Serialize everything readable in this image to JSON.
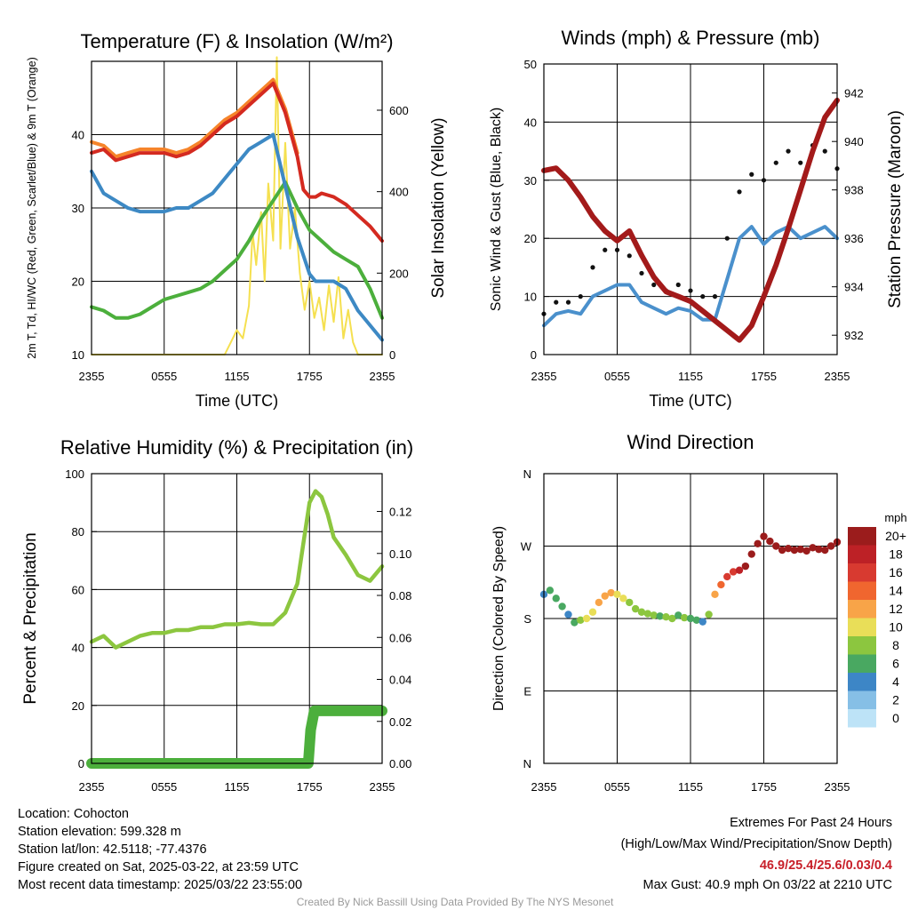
{
  "chart_data": [
    {
      "type": "line",
      "title": "Temperature (F) & Insolation (W/m²)",
      "xlabel": "Time (UTC)",
      "ylabel": "2m T, Td, HI/WC (Red, Green, Scarlet/Blue) & 9m T (Orange)",
      "y2label": "Solar Insolation (Yellow)",
      "x_ticks": [
        "2355",
        "0555",
        "1155",
        "1755",
        "2355"
      ],
      "ylim": [
        10,
        50
      ],
      "yticks": [
        10,
        20,
        30,
        40
      ],
      "y2lim": [
        0,
        720
      ],
      "y2ticks": [
        0,
        200,
        400,
        600
      ],
      "grid": true,
      "series": [
        {
          "name": "2m T",
          "color": "#d42a20",
          "axis": "left",
          "x": [
            0,
            1,
            2,
            3,
            4,
            5,
            6,
            7,
            8,
            9,
            10,
            11,
            12,
            13,
            14,
            15,
            16,
            17,
            17.5,
            18,
            18.5,
            19,
            20,
            21,
            22,
            23,
            24
          ],
          "y": [
            37.5,
            38,
            36.5,
            37,
            37.5,
            37.5,
            37.5,
            37,
            37.5,
            38.5,
            40,
            41.5,
            42.5,
            44,
            45.5,
            47,
            43,
            37,
            32.5,
            31.5,
            31.5,
            32,
            31.5,
            30.5,
            29,
            27.5,
            25.5
          ]
        },
        {
          "name": "9m T",
          "color": "#f6842a",
          "axis": "left",
          "x": [
            0,
            1,
            2,
            3,
            4,
            5,
            6,
            7,
            8,
            9,
            10,
            11,
            12,
            13,
            14,
            15,
            16,
            17
          ],
          "y": [
            39,
            38.5,
            37,
            37.5,
            38,
            38,
            38,
            37.5,
            38,
            39,
            40.5,
            42,
            43,
            44.5,
            46,
            47.5,
            43.5,
            37.5
          ]
        },
        {
          "name": "Wind Chill",
          "color": "#3d89c4",
          "axis": "left",
          "x": [
            0,
            1,
            2,
            3,
            4,
            5,
            6,
            7,
            8,
            9,
            10,
            11,
            12,
            13,
            14,
            15,
            16,
            17,
            18,
            18.5,
            19,
            20,
            21,
            22,
            23,
            24
          ],
          "y": [
            35,
            32,
            31,
            30,
            29.5,
            29.5,
            29.5,
            30,
            30,
            31,
            32,
            34,
            36,
            38,
            39,
            40,
            33,
            26,
            21,
            20,
            20,
            20,
            19,
            16,
            14,
            12
          ]
        },
        {
          "name": "Td",
          "color": "#4caf3c",
          "axis": "left",
          "x": [
            0,
            1,
            2,
            3,
            4,
            5,
            6,
            7,
            8,
            9,
            10,
            11,
            12,
            13,
            14,
            15,
            16,
            17,
            18,
            19,
            20,
            21,
            22,
            23,
            24
          ],
          "y": [
            16.5,
            16,
            15,
            15,
            15.5,
            16.5,
            17.5,
            18,
            18.5,
            19,
            20,
            21.5,
            23,
            25.5,
            28.5,
            31,
            33.5,
            30,
            27,
            25.5,
            24,
            23,
            22,
            19,
            15
          ]
        },
        {
          "name": "Solar Insolation",
          "color": "#f5e050",
          "axis": "right",
          "x": [
            0,
            11,
            11.5,
            12,
            12.5,
            13,
            13.3,
            13.6,
            14,
            14.3,
            14.6,
            15,
            15.3,
            15.6,
            16,
            16.4,
            16.8,
            17.2,
            17.6,
            18,
            18.4,
            18.8,
            19.2,
            19.6,
            20,
            20.4,
            20.8,
            21.2,
            21.6,
            22,
            24
          ],
          "y": [
            0,
            0,
            30,
            60,
            40,
            120,
            300,
            220,
            350,
            180,
            420,
            280,
            730,
            260,
            520,
            260,
            360,
            200,
            110,
            180,
            90,
            140,
            60,
            170,
            80,
            190,
            40,
            110,
            30,
            0,
            0
          ]
        }
      ]
    },
    {
      "type": "line",
      "title": "Winds (mph) & Pressure (mb)",
      "xlabel": "Time (UTC)",
      "ylabel": "Sonic Wind & Gust (Blue, Black)",
      "y2label": "Station Pressure (Maroon)",
      "x_ticks": [
        "2355",
        "0555",
        "1155",
        "1755",
        "2355"
      ],
      "ylim": [
        0,
        50
      ],
      "yticks": [
        0,
        10,
        20,
        30,
        40,
        50
      ],
      "y2lim": [
        931.2,
        943.2
      ],
      "y2ticks": [
        932,
        934,
        936,
        938,
        940,
        942
      ],
      "grid": true,
      "series": [
        {
          "name": "Sonic Wind",
          "color": "#4a90cc",
          "axis": "left",
          "x": [
            0,
            1,
            2,
            3,
            4,
            5,
            6,
            7,
            8,
            9,
            10,
            11,
            12,
            13,
            14,
            15,
            16,
            17,
            18,
            19,
            20,
            21,
            22,
            23,
            24
          ],
          "y": [
            5,
            7,
            7.5,
            7,
            10,
            11,
            12,
            12,
            9,
            8,
            7,
            8,
            7.5,
            6,
            6,
            13,
            20,
            22,
            19,
            21,
            22,
            20,
            21,
            22,
            20
          ]
        },
        {
          "name": "Gust",
          "color": "#111111",
          "axis": "left",
          "x": [
            0,
            1,
            2,
            3,
            4,
            5,
            6,
            7,
            8,
            9,
            10,
            11,
            12,
            13,
            14,
            15,
            16,
            17,
            18,
            19,
            20,
            21,
            22,
            23,
            24
          ],
          "y": [
            7,
            9,
            9,
            10,
            15,
            18,
            18,
            17,
            14,
            12,
            11,
            12,
            11,
            10,
            10,
            20,
            28,
            31,
            30,
            33,
            35,
            33,
            36,
            35,
            32
          ]
        },
        {
          "name": "Station Pressure",
          "color": "#a31a1a",
          "axis": "right",
          "x": [
            0,
            1,
            2,
            3,
            4,
            5,
            6,
            7,
            8,
            9,
            10,
            11,
            12,
            13,
            14,
            15,
            16,
            17,
            18,
            19,
            20,
            21,
            22,
            23,
            24
          ],
          "y": [
            938.8,
            938.9,
            938.4,
            937.7,
            936.9,
            936.3,
            935.9,
            936.3,
            935.3,
            934.4,
            933.8,
            933.6,
            933.4,
            933.0,
            932.6,
            932.2,
            931.8,
            932.4,
            933.6,
            934.9,
            936.4,
            938.0,
            939.6,
            941.0,
            941.7
          ]
        }
      ]
    },
    {
      "type": "line",
      "title": "Relative Humidity (%) & Precipitation (in)",
      "xlabel": "",
      "ylabel": "Percent & Precipitation",
      "x_ticks": [
        "2355",
        "0555",
        "1155",
        "1755",
        "2355"
      ],
      "ylim": [
        0,
        100
      ],
      "yticks": [
        0,
        20,
        40,
        60,
        80,
        100
      ],
      "y2lim": [
        0,
        0.138
      ],
      "y2ticks": [
        "0.00",
        "0.02",
        "0.04",
        "0.06",
        "0.08",
        "0.10",
        "0.12"
      ],
      "grid": true,
      "series": [
        {
          "name": "Relative Humidity",
          "color": "#8cc63f",
          "axis": "left",
          "x": [
            0,
            1,
            2,
            3,
            4,
            5,
            6,
            7,
            8,
            9,
            10,
            11,
            12,
            13,
            14,
            15,
            16,
            17,
            17.5,
            18,
            18.5,
            19,
            19.5,
            20,
            21,
            22,
            23,
            24
          ],
          "y": [
            42,
            44,
            40,
            42,
            44,
            45,
            45,
            46,
            46,
            47,
            47,
            48,
            48,
            48.5,
            48,
            48,
            52,
            62,
            76,
            90,
            94,
            92,
            86,
            78,
            72,
            65,
            63,
            68
          ]
        },
        {
          "name": "Precipitation",
          "color": "#4caf3c",
          "axis": "right",
          "x": [
            0,
            17.9,
            18.1,
            18.4,
            24
          ],
          "y": [
            0,
            0,
            0.016,
            0.025,
            0.025
          ]
        }
      ]
    },
    {
      "type": "scatter",
      "title": "Wind Direction",
      "xlabel": "",
      "ylabel": "Direction (Colored By Speed)",
      "x_ticks": [
        "2355",
        "0555",
        "1155",
        "1755",
        "2355"
      ],
      "y_ticks": [
        "N",
        "E",
        "S",
        "W",
        "N"
      ],
      "ylim": [
        0,
        360
      ],
      "grid": true,
      "legend": {
        "title": "mph",
        "labels": [
          "20+",
          "18",
          "16",
          "14",
          "12",
          "10",
          "8",
          "6",
          "4",
          "2",
          "0"
        ],
        "colors": [
          "#9b1c1c",
          "#bd2126",
          "#d83a30",
          "#f0662f",
          "#f8a448",
          "#e9de58",
          "#8cc63f",
          "#49a861",
          "#3d86c6",
          "#86bfe6",
          "#bde3f7"
        ],
        "position": "right"
      },
      "points": {
        "x": [
          0,
          0.5,
          1,
          1.5,
          2,
          2.5,
          3,
          3.5,
          4,
          4.5,
          5,
          5.5,
          6,
          6.5,
          7,
          7.5,
          8,
          8.5,
          9,
          9.5,
          10,
          10.5,
          11,
          11.5,
          12,
          12.5,
          13,
          13.5,
          14,
          14.5,
          15,
          15.5,
          16,
          16.5,
          17,
          17.5,
          18,
          18.5,
          19,
          19.5,
          20,
          20.5,
          21,
          21.5,
          22,
          22.5,
          23,
          23.5,
          24
        ],
        "y": [
          210,
          215,
          205,
          195,
          185,
          175,
          178,
          180,
          188,
          200,
          208,
          212,
          210,
          205,
          200,
          192,
          188,
          186,
          184,
          183,
          182,
          180,
          184,
          181,
          180,
          178,
          176,
          185,
          210,
          222,
          232,
          238,
          240,
          245,
          260,
          273,
          282,
          276,
          270,
          265,
          267,
          265,
          266,
          264,
          268,
          266,
          265,
          270,
          275
        ],
        "speed": [
          4,
          5,
          6,
          5,
          4,
          6,
          8,
          9,
          10,
          11,
          12,
          11,
          10,
          9,
          8,
          7,
          8,
          7,
          7,
          6,
          7,
          7,
          6,
          7,
          6,
          5,
          4,
          8,
          12,
          14,
          16,
          15,
          17,
          19,
          20,
          21,
          20,
          20,
          21,
          20,
          20,
          20,
          20,
          20,
          20,
          20,
          20,
          20,
          20
        ]
      }
    }
  ],
  "info": {
    "location": "Location: Cohocton",
    "elevation": "Station elevation: 599.328 m",
    "latlon": "Station lat/lon: 42.5118; -77.4376",
    "created": "Figure created on Sat, 2025-03-22, at 23:59 UTC",
    "recent": "Most recent data timestamp: 2025/03/22 23:55:00"
  },
  "extremes": {
    "title": "Extremes For Past 24 Hours",
    "subtitle": "(High/Low/Max Wind/Precipitation/Snow Depth)",
    "values": "46.9/25.4/25.6/0.03/0.4",
    "max_gust": "Max Gust: 40.9 mph On 03/22 at 2210 UTC"
  },
  "credit": "Created By Nick Bassill Using Data Provided By The NYS Mesonet"
}
